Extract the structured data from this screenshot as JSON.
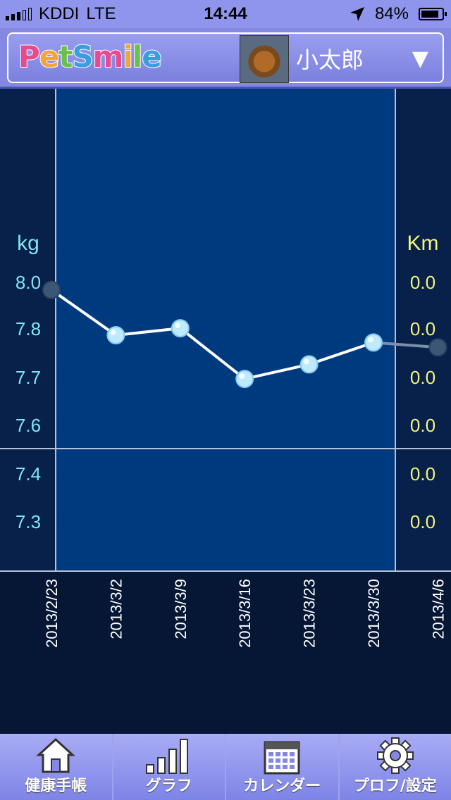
{
  "status": {
    "carrier": "KDDI",
    "network": "LTE",
    "time": "14:44",
    "battery": "84%",
    "battery_level": 0.84
  },
  "header": {
    "logo": [
      "P",
      "e",
      "t",
      "S",
      "m",
      "i",
      "l",
      "e"
    ],
    "logo_colors": [
      "#e84a8f",
      "#f2a53a",
      "#6bc04a",
      "#3a9de0",
      "#e84a8f",
      "#f2a53a",
      "#6bc04a",
      "#3a9de0"
    ],
    "pet_name": "小太郎",
    "dropdown_icon": "▼"
  },
  "chart_data": {
    "type": "line",
    "left_unit": "kg",
    "right_unit": "Km",
    "left_ticks": [
      "8.0",
      "7.8",
      "7.7",
      "7.6",
      "7.4",
      "7.3"
    ],
    "right_ticks": [
      "0.0",
      "0.0",
      "0.0",
      "0.0",
      "0.0",
      "0.0"
    ],
    "x": [
      "2013/2/23",
      "2013/3/2",
      "2013/3/9",
      "2013/3/16",
      "2013/3/23",
      "2013/3/30",
      "2013/4/6"
    ],
    "series": [
      {
        "values": [
          7.995,
          7.8,
          7.83,
          7.71,
          7.74,
          7.785,
          7.775
        ]
      }
    ],
    "colors": {
      "plot_bg": "#003a7e",
      "outer_bg": "#08214a",
      "line": "#ffffff",
      "left_text": "#7fe6f0",
      "right_text": "#f4f27a"
    }
  },
  "tabs": [
    {
      "label": "健康手帳",
      "icon": "home-icon"
    },
    {
      "label": "グラフ",
      "icon": "bar-chart-icon"
    },
    {
      "label": "カレンダー",
      "icon": "calendar-icon"
    },
    {
      "label": "プロフ/設定",
      "icon": "gear-icon"
    }
  ]
}
